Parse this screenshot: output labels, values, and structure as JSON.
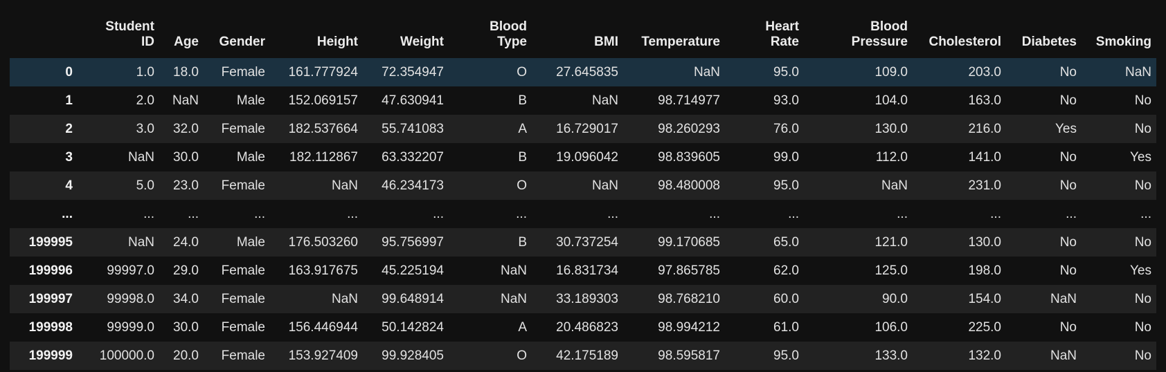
{
  "table": {
    "index_header": "",
    "columns": [
      [
        "Student",
        "ID"
      ],
      [
        "Age"
      ],
      [
        "Gender"
      ],
      [
        "Height"
      ],
      [
        "Weight"
      ],
      [
        "Blood",
        "Type"
      ],
      [
        "BMI"
      ],
      [
        "Temperature"
      ],
      [
        "Heart",
        "Rate"
      ],
      [
        "Blood",
        "Pressure"
      ],
      [
        "Cholesterol"
      ],
      [
        "Diabetes"
      ],
      [
        "Smoking"
      ]
    ],
    "rows": [
      {
        "index": "0",
        "cells": [
          "1.0",
          "18.0",
          "Female",
          "161.777924",
          "72.354947",
          "O",
          "27.645835",
          "NaN",
          "95.0",
          "109.0",
          "203.0",
          "No",
          "NaN"
        ]
      },
      {
        "index": "1",
        "cells": [
          "2.0",
          "NaN",
          "Male",
          "152.069157",
          "47.630941",
          "B",
          "NaN",
          "98.714977",
          "93.0",
          "104.0",
          "163.0",
          "No",
          "No"
        ]
      },
      {
        "index": "2",
        "cells": [
          "3.0",
          "32.0",
          "Female",
          "182.537664",
          "55.741083",
          "A",
          "16.729017",
          "98.260293",
          "76.0",
          "130.0",
          "216.0",
          "Yes",
          "No"
        ]
      },
      {
        "index": "3",
        "cells": [
          "NaN",
          "30.0",
          "Male",
          "182.112867",
          "63.332207",
          "B",
          "19.096042",
          "98.839605",
          "99.0",
          "112.0",
          "141.0",
          "No",
          "Yes"
        ]
      },
      {
        "index": "4",
        "cells": [
          "5.0",
          "23.0",
          "Female",
          "NaN",
          "46.234173",
          "O",
          "NaN",
          "98.480008",
          "95.0",
          "NaN",
          "231.0",
          "No",
          "No"
        ]
      },
      {
        "index": "...",
        "cells": [
          "...",
          "...",
          "...",
          "...",
          "...",
          "...",
          "...",
          "...",
          "...",
          "...",
          "...",
          "...",
          "..."
        ]
      },
      {
        "index": "199995",
        "cells": [
          "NaN",
          "24.0",
          "Male",
          "176.503260",
          "95.756997",
          "B",
          "30.737254",
          "99.170685",
          "65.0",
          "121.0",
          "130.0",
          "No",
          "No"
        ]
      },
      {
        "index": "199996",
        "cells": [
          "99997.0",
          "29.0",
          "Female",
          "163.917675",
          "45.225194",
          "NaN",
          "16.831734",
          "97.865785",
          "62.0",
          "125.0",
          "198.0",
          "No",
          "Yes"
        ]
      },
      {
        "index": "199997",
        "cells": [
          "99998.0",
          "34.0",
          "Female",
          "NaN",
          "99.648914",
          "NaN",
          "33.189303",
          "98.768210",
          "60.0",
          "90.0",
          "154.0",
          "NaN",
          "No"
        ]
      },
      {
        "index": "199998",
        "cells": [
          "99999.0",
          "30.0",
          "Female",
          "156.446944",
          "50.142824",
          "A",
          "20.486823",
          "98.994212",
          "61.0",
          "106.0",
          "225.0",
          "No",
          "No"
        ]
      },
      {
        "index": "199999",
        "cells": [
          "100000.0",
          "20.0",
          "Female",
          "153.927409",
          "99.928405",
          "O",
          "42.175189",
          "98.595817",
          "95.0",
          "133.0",
          "132.0",
          "NaN",
          "No"
        ]
      }
    ],
    "hovered_row": 0
  },
  "colors": {
    "background": "#111111",
    "row_odd": "#222222",
    "row_even": "#111111",
    "row_hover": "#1b3140",
    "text": "#e2e2e2"
  }
}
